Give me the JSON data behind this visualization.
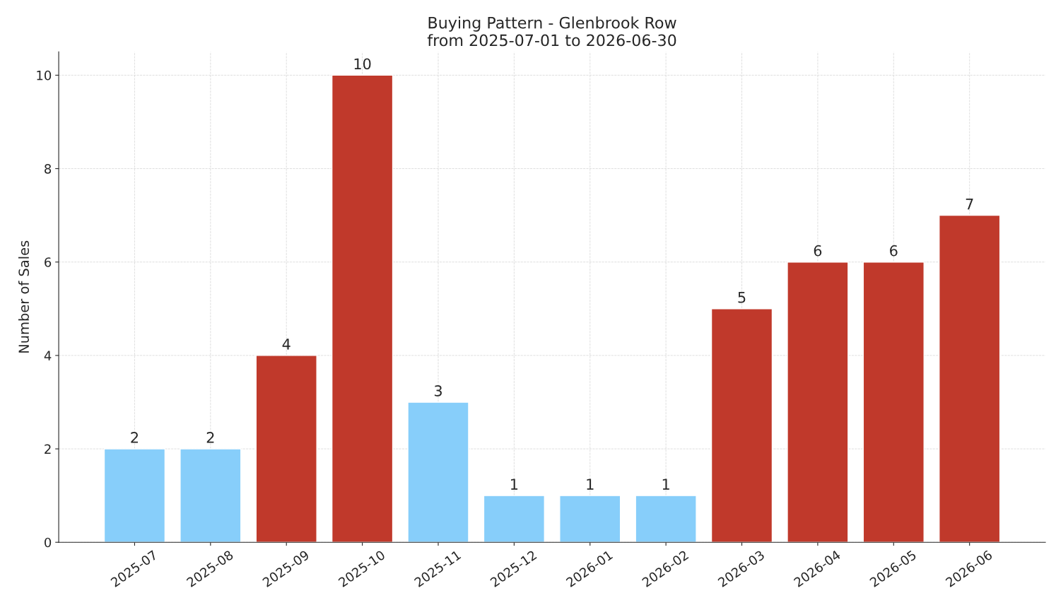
{
  "chart_data": {
    "type": "bar",
    "title": "Buying Pattern - Glenbrook Row\nfrom 2025-07-01 to 2026-06-30",
    "ylabel": "Number of Sales",
    "categories": [
      "2025-07",
      "2025-08",
      "2025-09",
      "2025-10",
      "2025-11",
      "2025-12",
      "2026-01",
      "2026-02",
      "2026-03",
      "2026-04",
      "2026-05",
      "2026-06"
    ],
    "values": [
      2,
      2,
      4,
      10,
      3,
      1,
      1,
      1,
      5,
      6,
      6,
      7
    ],
    "colors": [
      "#87cefa",
      "#87cefa",
      "#c0392b",
      "#c0392b",
      "#87cefa",
      "#87cefa",
      "#87cefa",
      "#87cefa",
      "#c0392b",
      "#c0392b",
      "#c0392b",
      "#c0392b"
    ],
    "ylim": [
      0,
      10.5
    ],
    "yticks": [
      0,
      2,
      4,
      6,
      8,
      10
    ],
    "grid": true,
    "data_labels": true
  }
}
